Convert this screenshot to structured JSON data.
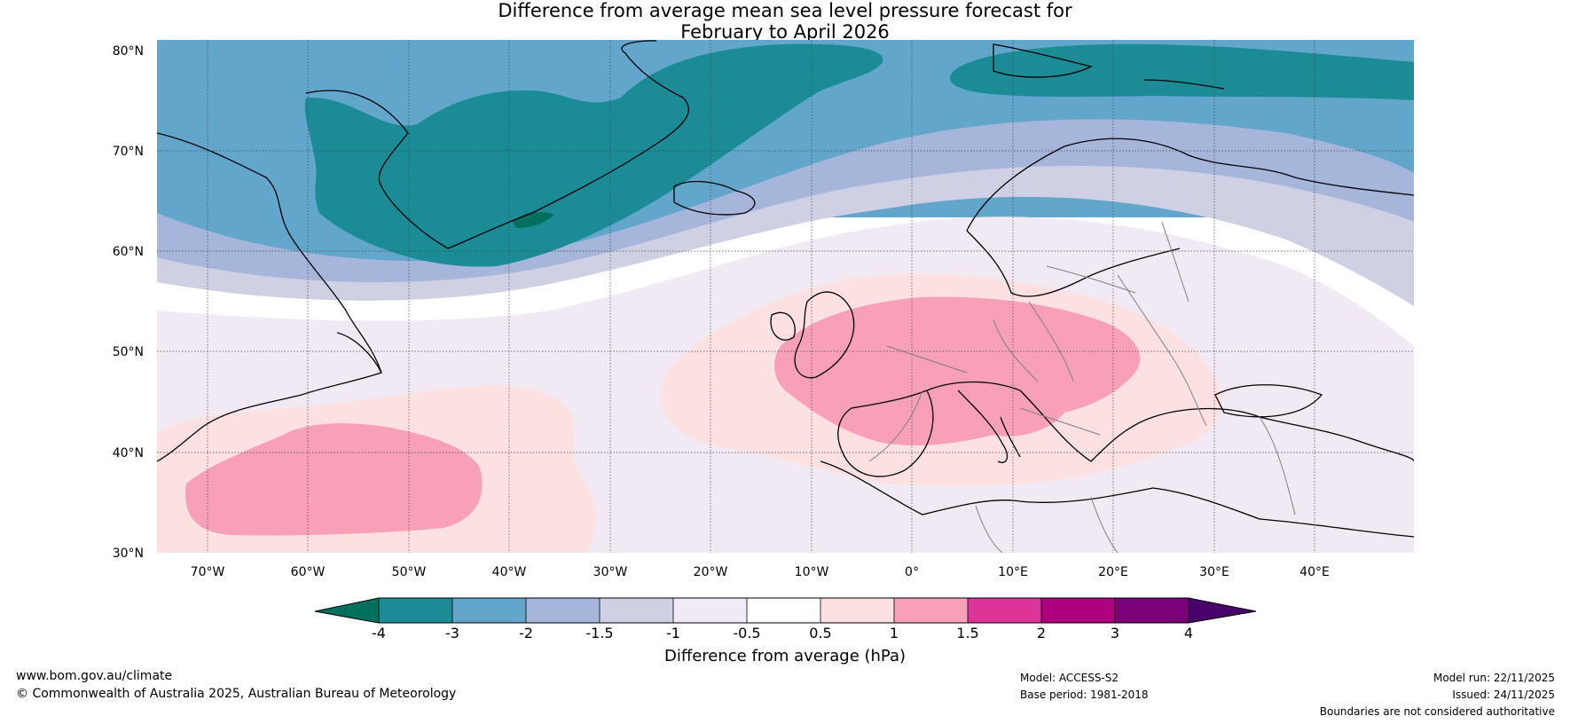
{
  "title": {
    "line1": "Difference from average mean sea level pressure forecast for",
    "line2": "February to April 2026"
  },
  "map": {
    "lat_labels": [
      "80°N",
      "70°N",
      "60°N",
      "50°N",
      "40°N",
      "30°N"
    ],
    "lon_labels": [
      "70°W",
      "60°W",
      "50°W",
      "40°W",
      "30°W",
      "20°W",
      "10°W",
      "0°",
      "10°E",
      "20°E",
      "30°E",
      "40°E"
    ]
  },
  "colorbar": {
    "label": "Difference from average (hPa)",
    "ticks": [
      "-4",
      "-3",
      "-2",
      "-1.5",
      "-1",
      "-0.5",
      "0.5",
      "1",
      "1.5",
      "2",
      "3",
      "4"
    ],
    "colors": {
      "lt_neg4": "#00705e",
      "neg4_neg3": "#1b8b96",
      "neg3_neg2": "#63a6cc",
      "neg2_neg15": "#a5b6da",
      "neg15_neg1": "#cfd0e4",
      "neg1_neg05": "#f1eaf4",
      "neg05_05": "#ffffff",
      "p05_1": "#fde0e0",
      "p1_15": "#f7a0b8",
      "p15_2": "#dd3497",
      "p2_3": "#ae017e",
      "p3_4": "#7a0177",
      "gt4": "#49006a"
    }
  },
  "footer": {
    "website": "www.bom.gov.au/climate",
    "copyright": "© Commonwealth of Australia 2025, Australian Bureau of Meteorology",
    "model": "Model: ACCESS-S2",
    "base_period": "Base period: 1981-2018",
    "model_run": "Model run: 22/11/2025",
    "issued": "Issued: 24/11/2025",
    "disclaimer": "Boundaries are not considered authoritative"
  }
}
